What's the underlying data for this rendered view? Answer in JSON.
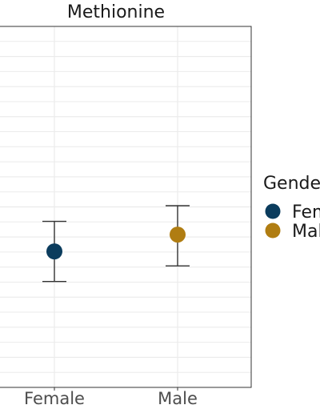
{
  "chart_data": {
    "type": "scatter",
    "title": "Methionine",
    "categories": [
      "Female",
      "Male"
    ],
    "series": [
      {
        "name": "Female",
        "color": "#0b3c5d",
        "value": 23.3,
        "lower": 20.8,
        "upper": 25.8
      },
      {
        "name": "Male",
        "color": "#b07d12",
        "value": 24.7,
        "lower": 22.1,
        "upper": 27.1
      }
    ],
    "ylim": [
      12,
      42
    ],
    "grid": true,
    "legend": {
      "title": "Gender",
      "placement": "right",
      "entries": [
        "Female",
        "Male"
      ]
    }
  }
}
